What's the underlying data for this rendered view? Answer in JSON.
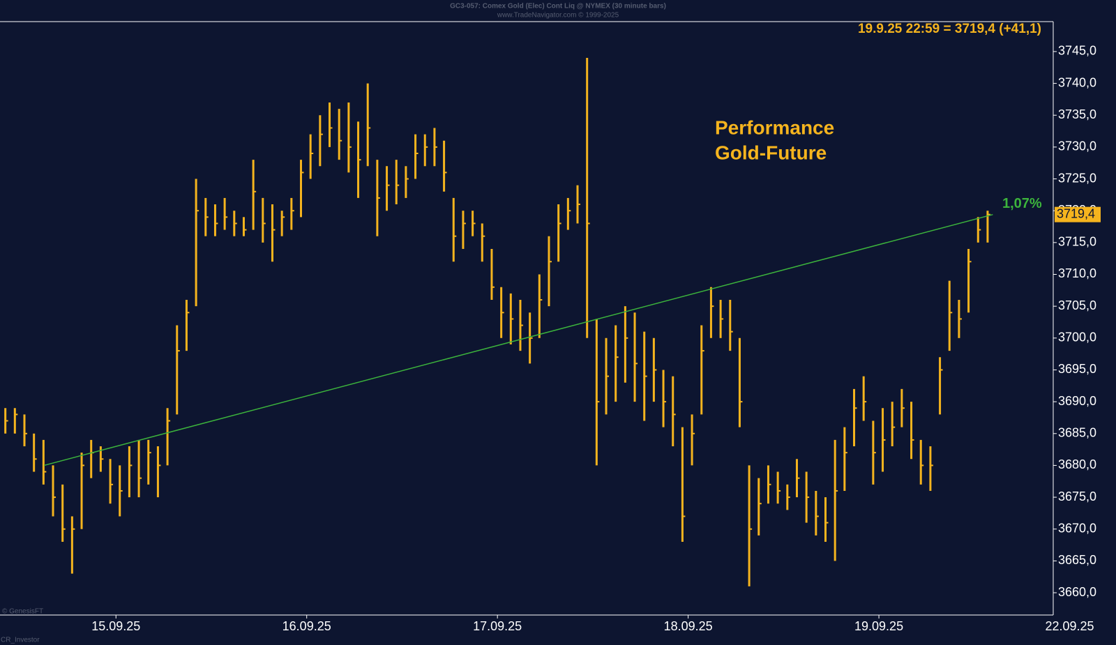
{
  "chart_data": {
    "type": "ohlc",
    "title": "GC3-057: Comex Gold (Elec) Cont Liq @ NYMEX (30 minute bars)",
    "subtitle": "www.TradeNavigator.com © 1999-2025",
    "header": "19.9.25 22:59 = 3719,4 (+41,1)",
    "annotation": [
      "Performance",
      "Gold-Future"
    ],
    "credit": "© GenesisFT",
    "footer": "CR_Investor",
    "color": "#f5b41e",
    "grid": false,
    "xlim": [
      -0.608,
      4.914
    ],
    "xticks": [
      {
        "value": 0,
        "label": "15.09.25"
      },
      {
        "value": 1,
        "label": "16.09.25"
      },
      {
        "value": 2,
        "label": "17.09.25"
      },
      {
        "value": 3,
        "label": "18.09.25"
      },
      {
        "value": 4,
        "label": "19.09.25"
      },
      {
        "value": 5,
        "label": "22.09.25"
      }
    ],
    "ylim": [
      3656.5,
      3749.7
    ],
    "yticks": [
      {
        "value": 3660,
        "label": "3660,0"
      },
      {
        "value": 3665,
        "label": "3665,0"
      },
      {
        "value": 3670,
        "label": "3670,0"
      },
      {
        "value": 3675,
        "label": "3675,0"
      },
      {
        "value": 3680,
        "label": "3680,0"
      },
      {
        "value": 3685,
        "label": "3685,0"
      },
      {
        "value": 3690,
        "label": "3690,0"
      },
      {
        "value": 3695,
        "label": "3695,0"
      },
      {
        "value": 3700,
        "label": "3700,0"
      },
      {
        "value": 3705,
        "label": "3705,0"
      },
      {
        "value": 3710,
        "label": "3710,0"
      },
      {
        "value": 3715,
        "label": "3715,0"
      },
      {
        "value": 3720,
        "label": "3720,0"
      },
      {
        "value": 3725,
        "label": "3725,0"
      },
      {
        "value": 3730,
        "label": "3730,0"
      },
      {
        "value": 3735,
        "label": "3735,0"
      },
      {
        "value": 3740,
        "label": "3740,0"
      },
      {
        "value": 3745,
        "label": "3745,0"
      }
    ],
    "x": [
      -0.58,
      -0.53,
      -0.48,
      -0.43,
      -0.38,
      -0.33,
      -0.28,
      -0.23,
      -0.18,
      -0.13,
      -0.08,
      -0.03,
      0.02,
      0.07,
      0.12,
      0.17,
      0.22,
      0.27,
      0.32,
      0.37,
      0.42,
      0.47,
      0.52,
      0.57,
      0.62,
      0.67,
      0.72,
      0.77,
      0.82,
      0.87,
      0.92,
      0.97,
      1.02,
      1.07,
      1.12,
      1.17,
      1.22,
      1.27,
      1.32,
      1.37,
      1.42,
      1.47,
      1.52,
      1.57,
      1.62,
      1.67,
      1.72,
      1.77,
      1.82,
      1.87,
      1.92,
      1.97,
      2.02,
      2.07,
      2.12,
      2.17,
      2.22,
      2.27,
      2.32,
      2.37,
      2.42,
      2.47,
      2.52,
      2.57,
      2.62,
      2.67,
      2.72,
      2.77,
      2.82,
      2.87,
      2.92,
      2.97,
      3.02,
      3.07,
      3.12,
      3.17,
      3.22,
      3.27,
      3.32,
      3.37,
      3.42,
      3.47,
      3.52,
      3.57,
      3.62,
      3.67,
      3.72,
      3.77,
      3.82,
      3.87,
      3.92,
      3.97,
      4.02,
      4.07,
      4.12,
      4.17,
      4.22,
      4.27,
      4.32,
      4.37,
      4.42,
      4.47,
      4.52,
      4.57
    ],
    "high": [
      3689,
      3689,
      3688,
      3685,
      3684,
      3680,
      3677,
      3672,
      3682,
      3684,
      3683,
      3681,
      3680,
      3683,
      3684,
      3684,
      3683,
      3689,
      3702,
      3706,
      3725,
      3722,
      3721,
      3722,
      3720,
      3719,
      3728,
      3722,
      3721,
      3720,
      3722,
      3728,
      3732,
      3735,
      3737,
      3736,
      3737,
      3734,
      3740,
      3728,
      3727,
      3728,
      3727,
      3732,
      3732,
      3733,
      3731,
      3722,
      3720,
      3720,
      3718,
      3714,
      3708,
      3707,
      3706,
      3704,
      3710,
      3716,
      3721,
      3722,
      3724,
      3744,
      3703,
      3700,
      3702,
      3705,
      3704,
      3701,
      3700,
      3695,
      3694,
      3686,
      3688,
      3702,
      3708,
      3706,
      3706,
      3700,
      3680,
      3678,
      3680,
      3679,
      3677,
      3681,
      3679,
      3676,
      3675,
      3684,
      3686,
      3692,
      3694,
      3687,
      3689,
      3690,
      3692,
      3690,
      3684,
      3683,
      3697,
      3709,
      3706,
      3714,
      3719,
      3720
    ],
    "low": [
      3685,
      3685,
      3683,
      3679,
      3677,
      3672,
      3668,
      3663,
      3670,
      3678,
      3679,
      3674,
      3672,
      3675,
      3675,
      3677,
      3675,
      3680,
      3688,
      3698,
      3705,
      3716,
      3716,
      3717,
      3716,
      3716,
      3717,
      3715,
      3712,
      3716,
      3717,
      3719,
      3725,
      3727,
      3730,
      3728,
      3726,
      3722,
      3727,
      3716,
      3720,
      3721,
      3722,
      3725,
      3727,
      3727,
      3723,
      3712,
      3714,
      3716,
      3712,
      3706,
      3700,
      3699,
      3698,
      3696,
      3700,
      3705,
      3712,
      3717,
      3718,
      3700,
      3680,
      3688,
      3690,
      3693,
      3690,
      3687,
      3690,
      3686,
      3683,
      3668,
      3680,
      3688,
      3700,
      3700,
      3698,
      3686,
      3661,
      3669,
      3674,
      3674,
      3673,
      3675,
      3671,
      3669,
      3668,
      3665,
      3676,
      3683,
      3687,
      3677,
      3679,
      3683,
      3686,
      3681,
      3677,
      3676,
      3688,
      3698,
      3700,
      3704,
      3715,
      3715
    ],
    "close": [
      3687,
      3688,
      3685,
      3681,
      3679,
      3675,
      3670,
      3670,
      3680,
      3682,
      3681,
      3677,
      3676,
      3680,
      3678,
      3682,
      3680,
      3687,
      3698,
      3704,
      3720,
      3719,
      3718,
      3719,
      3718,
      3717,
      3723,
      3718,
      3717,
      3719,
      3720,
      3726,
      3729,
      3732,
      3733,
      3731,
      3730,
      3728,
      3733,
      3722,
      3724,
      3724,
      3725,
      3729,
      3730,
      3730,
      3726,
      3716,
      3718,
      3718,
      3716,
      3708,
      3704,
      3703,
      3702,
      3700,
      3706,
      3712,
      3718,
      3720,
      3721,
      3718,
      3690,
      3694,
      3697,
      3700,
      3696,
      3694,
      3695,
      3690,
      3688,
      3672,
      3685,
      3698,
      3705,
      3703,
      3701,
      3690,
      3670,
      3674,
      3677,
      3676,
      3675,
      3678,
      3675,
      3672,
      3671,
      3676,
      3682,
      3689,
      3690,
      3682,
      3684,
      3686,
      3689,
      3684,
      3680,
      3680,
      3695,
      3704,
      3703,
      3712,
      3717,
      3719.4
    ],
    "last_label": {
      "value": 3719.4,
      "label": "3719,4"
    },
    "trend_line": {
      "x": [
        -0.377,
        4.597
      ],
      "values": [
        3680,
        3719.4
      ],
      "label": "1,07%",
      "color": "#3cb43c"
    }
  }
}
